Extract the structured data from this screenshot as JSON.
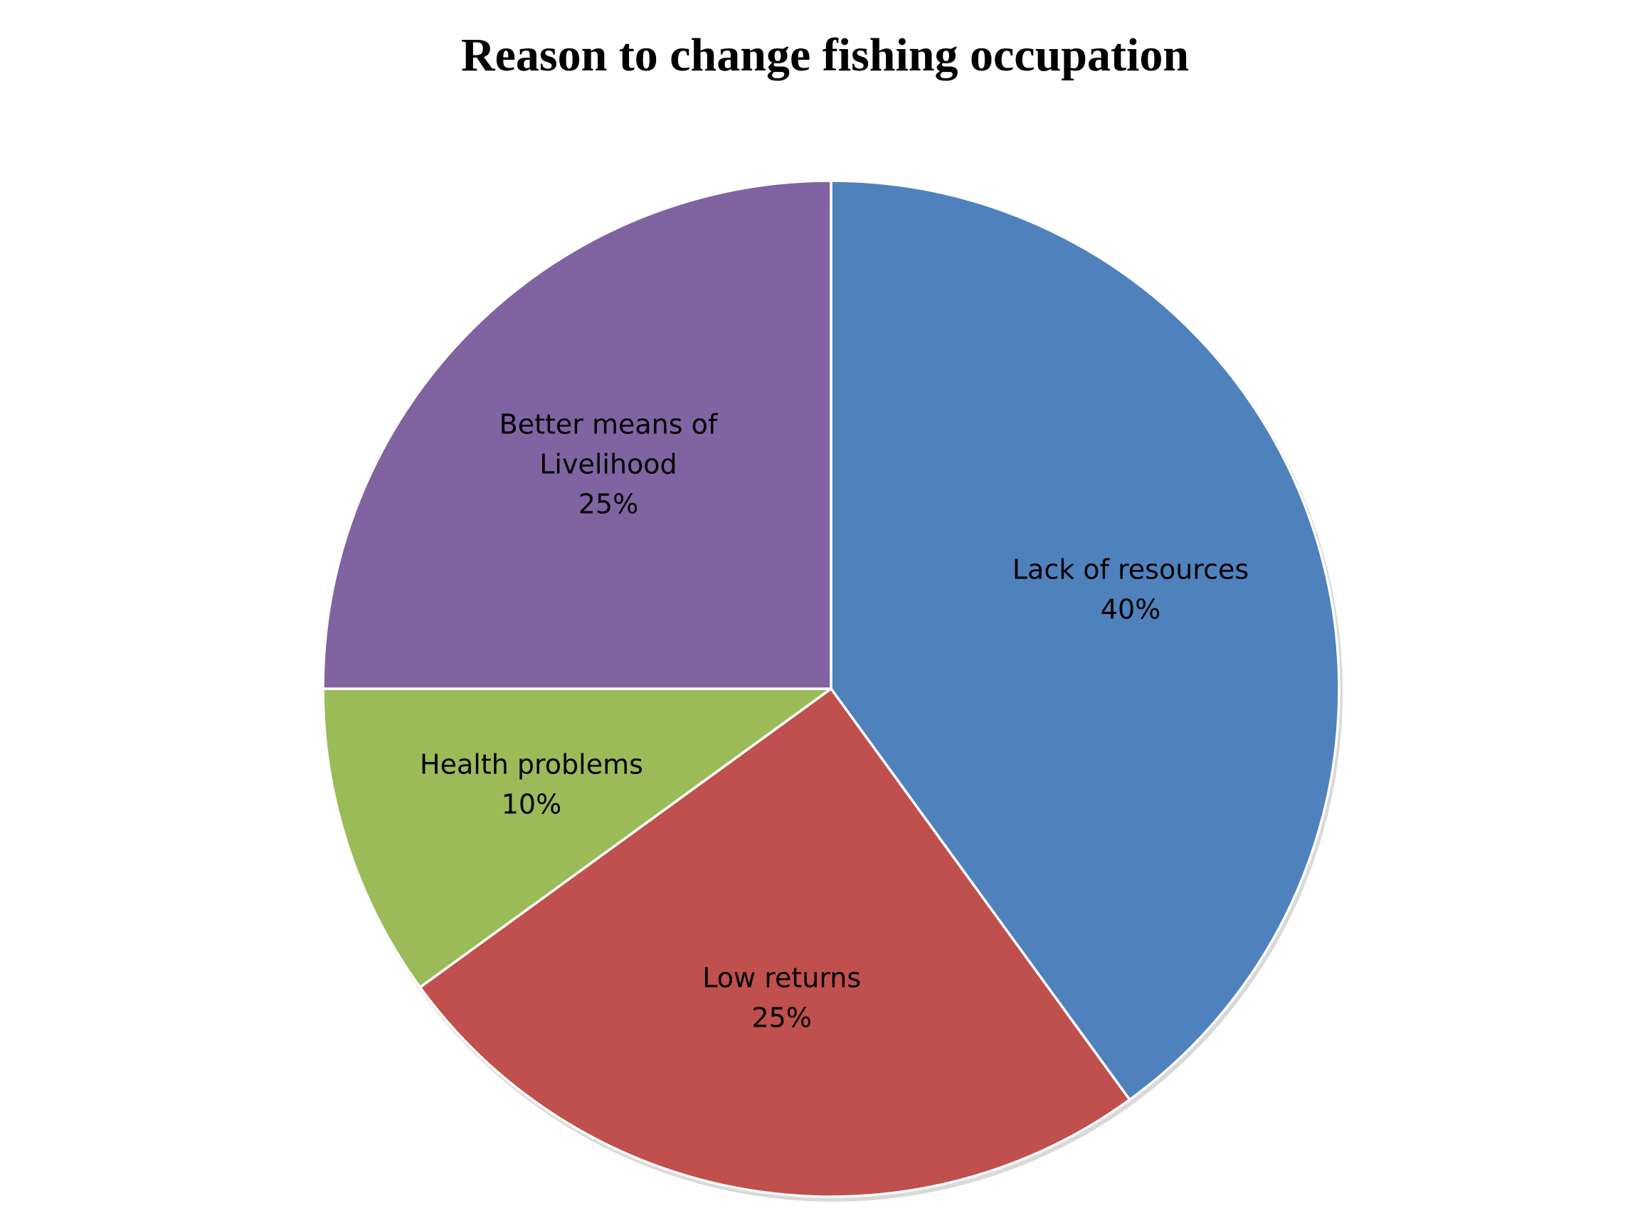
{
  "chart_data": {
    "type": "pie",
    "title": "Reason to change fishing occupation",
    "slices": [
      {
        "label_lines": [
          "Lack of resources"
        ],
        "value": 40,
        "value_label": "40%",
        "color": "#4F81BD"
      },
      {
        "label_lines": [
          "Low returns"
        ],
        "value": 25,
        "value_label": "25%",
        "color": "#C0504D"
      },
      {
        "label_lines": [
          "Health problems"
        ],
        "value": 10,
        "value_label": "10%",
        "color": "#9BBB59"
      },
      {
        "label_lines": [
          "Better means of",
          "Livelihood"
        ],
        "value": 25,
        "value_label": "25%",
        "color": "#8064A2"
      }
    ],
    "start_angle": "12 o'clock",
    "direction": "clockwise",
    "legend": "none"
  }
}
